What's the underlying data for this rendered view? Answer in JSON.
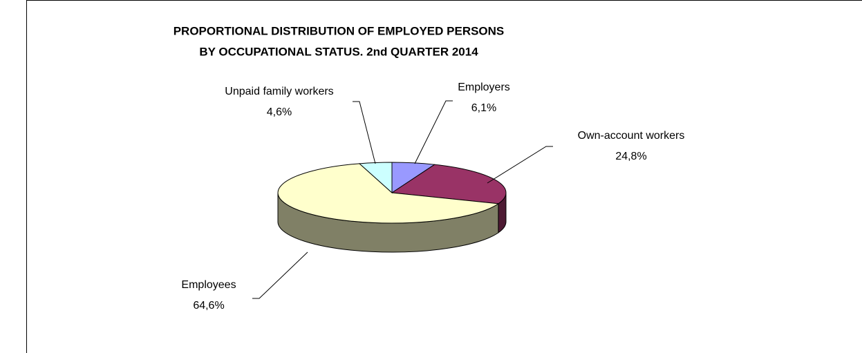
{
  "chart_data": {
    "type": "pie",
    "title_lines": [
      "PROPORTIONAL DISTRIBUTION OF EMPLOYED PERSONS",
      "BY OCCUPATIONAL STATUS. 2nd QUARTER 2014"
    ],
    "categories": [
      "Employers",
      "Own-account workers",
      "Employees",
      "Unpaid family workers"
    ],
    "values": [
      6.1,
      24.8,
      64.6,
      4.6
    ],
    "value_labels": [
      "6,1%",
      "24,8%",
      "64,6%",
      "4,6%"
    ],
    "colors": [
      "#9999ff",
      "#993366",
      "#ffffcc",
      "#ccffff"
    ]
  }
}
